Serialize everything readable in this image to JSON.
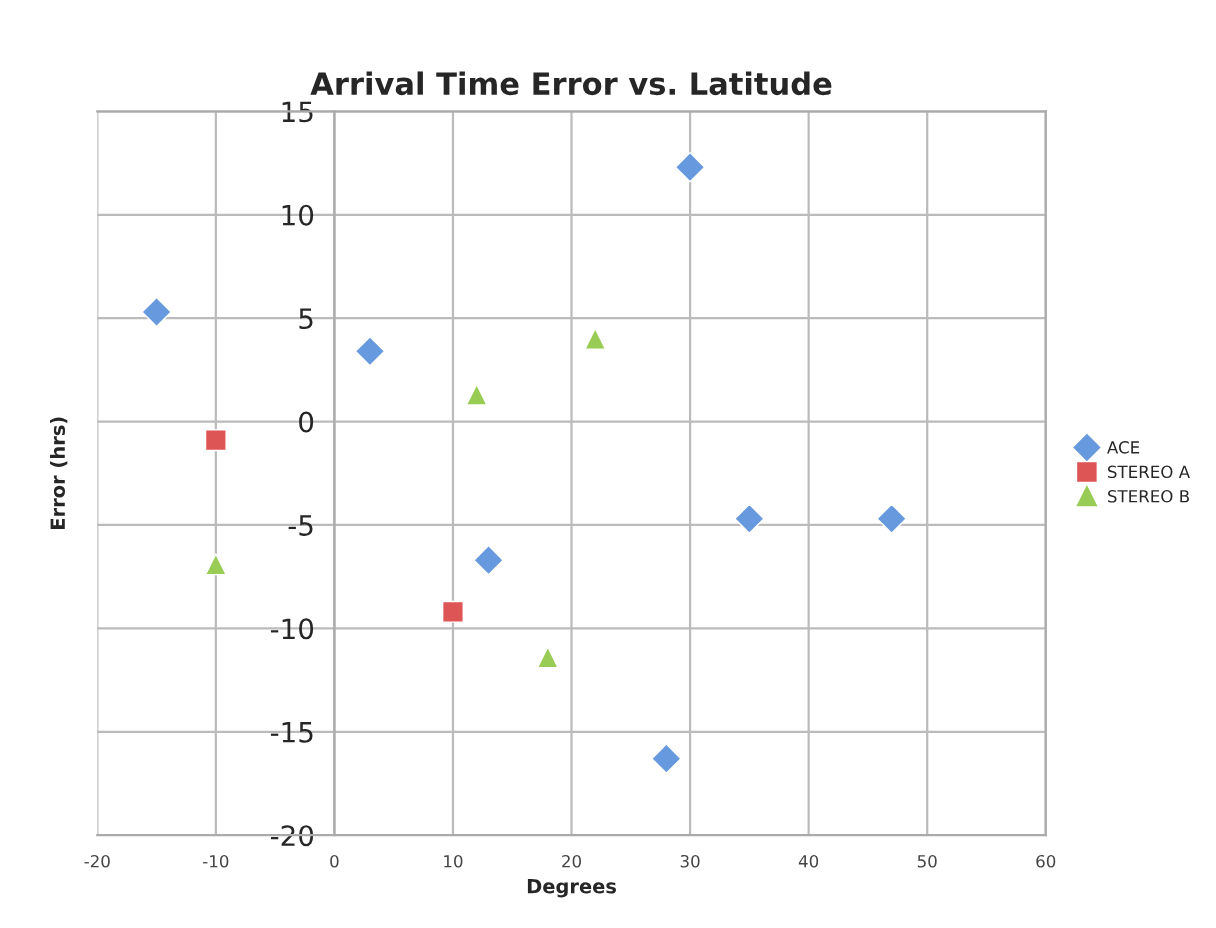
{
  "chart_data": {
    "type": "scatter",
    "title": "Arrival Time Error vs. Latitude",
    "xlabel": "Degrees",
    "ylabel": "Error (hrs)",
    "series": [
      {
        "name": "ACE",
        "color": "#6699dd",
        "marker": "diamond",
        "x": [
          -15,
          3,
          30,
          13,
          35,
          47,
          28
        ],
        "values": [
          5.3,
          3.4,
          12.3,
          -6.7,
          -4.7,
          -4.7,
          -16.3
        ]
      },
      {
        "name": "STEREO A",
        "color": "#dd5555",
        "marker": "square",
        "x": [
          -10,
          10
        ],
        "values": [
          -0.9,
          -9.2
        ]
      },
      {
        "name": "STEREO B",
        "color": "#99cc55",
        "marker": "triangle",
        "x": [
          -10,
          12,
          22,
          18
        ],
        "values": [
          -6.9,
          1.3,
          4.0,
          -11.4
        ]
      }
    ],
    "xlim": [
      -20,
      60
    ],
    "xticks": [
      -20,
      -10,
      0,
      10,
      20,
      30,
      40,
      50,
      60
    ],
    "ylim": [
      -20,
      15
    ],
    "yticks": [
      -20,
      -15,
      -10,
      -5,
      0,
      5,
      10,
      15
    ],
    "grid": true,
    "legend": "right"
  }
}
